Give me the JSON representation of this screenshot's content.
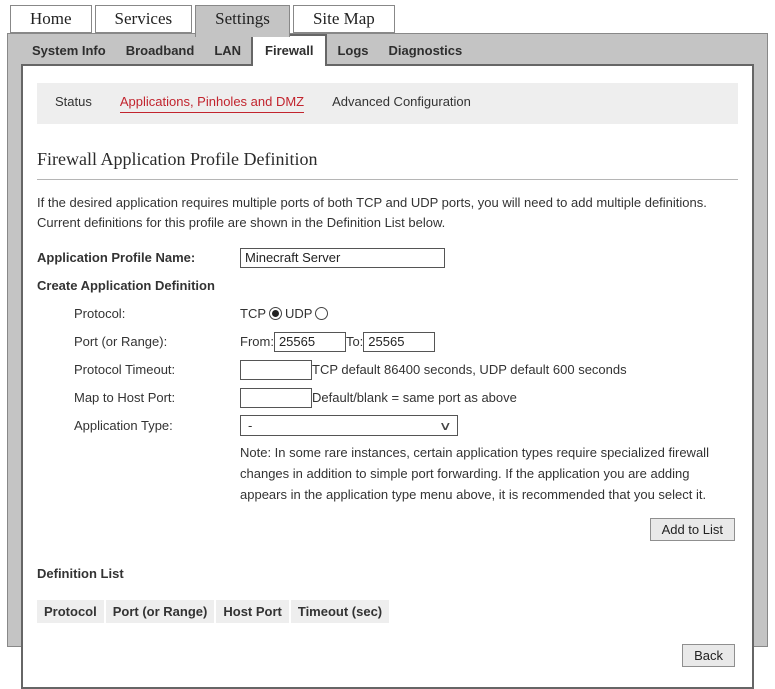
{
  "main_tabs": {
    "items": [
      {
        "label": "Home",
        "active": false
      },
      {
        "label": "Services",
        "active": false
      },
      {
        "label": "Settings",
        "active": true
      },
      {
        "label": "Site Map",
        "active": false
      }
    ]
  },
  "sub_tabs": {
    "items": [
      {
        "label": "System Info",
        "active": false
      },
      {
        "label": "Broadband",
        "active": false
      },
      {
        "label": "LAN",
        "active": false
      },
      {
        "label": "Firewall",
        "active": true
      },
      {
        "label": "Logs",
        "active": false
      },
      {
        "label": "Diagnostics",
        "active": false
      }
    ]
  },
  "section_nav": {
    "items": [
      {
        "label": "Status",
        "active": false
      },
      {
        "label": "Applications, Pinholes and DMZ",
        "active": true
      },
      {
        "label": "Advanced Configuration",
        "active": false
      }
    ]
  },
  "page": {
    "title": "Firewall Application Profile Definition",
    "intro": "If the desired application requires multiple ports of both TCP and UDP ports, you will need to add multiple definitions. Current definitions for this profile are shown in the Definition List below."
  },
  "form": {
    "profile_name_label": "Application Profile Name:",
    "profile_name_value": "Minecraft Server",
    "create_definition_label": "Create Application Definition",
    "protocol_label": "Protocol:",
    "protocol_tcp_label": "TCP",
    "protocol_udp_label": "UDP",
    "protocol_selected": "TCP",
    "port_range_label": "Port (or Range):",
    "from_label": "From:",
    "from_value": "25565",
    "to_label": "To:",
    "to_value": "25565",
    "timeout_label": "Protocol Timeout:",
    "timeout_value": "",
    "timeout_hint": "TCP default 86400 seconds, UDP default 600 seconds",
    "host_port_label": "Map to Host Port:",
    "host_port_value": "",
    "host_port_hint": "Default/blank = same port as above",
    "app_type_label": "Application Type:",
    "app_type_value": "-",
    "note": "Note: In some rare instances, certain application types require specialized firewall changes in addition to simple port forwarding. If the application you are adding appears in the application type menu above, it is recommended that you select it.",
    "add_button_label": "Add to List"
  },
  "definition_list": {
    "title": "Definition List",
    "columns": [
      "Protocol",
      "Port (or Range)",
      "Host Port",
      "Timeout (sec)"
    ],
    "rows": []
  },
  "back_button_label": "Back",
  "colors": {
    "accent_red": "#c2242e",
    "band_gray": "#c4c4c4",
    "strip_gray": "#eeeeee"
  }
}
